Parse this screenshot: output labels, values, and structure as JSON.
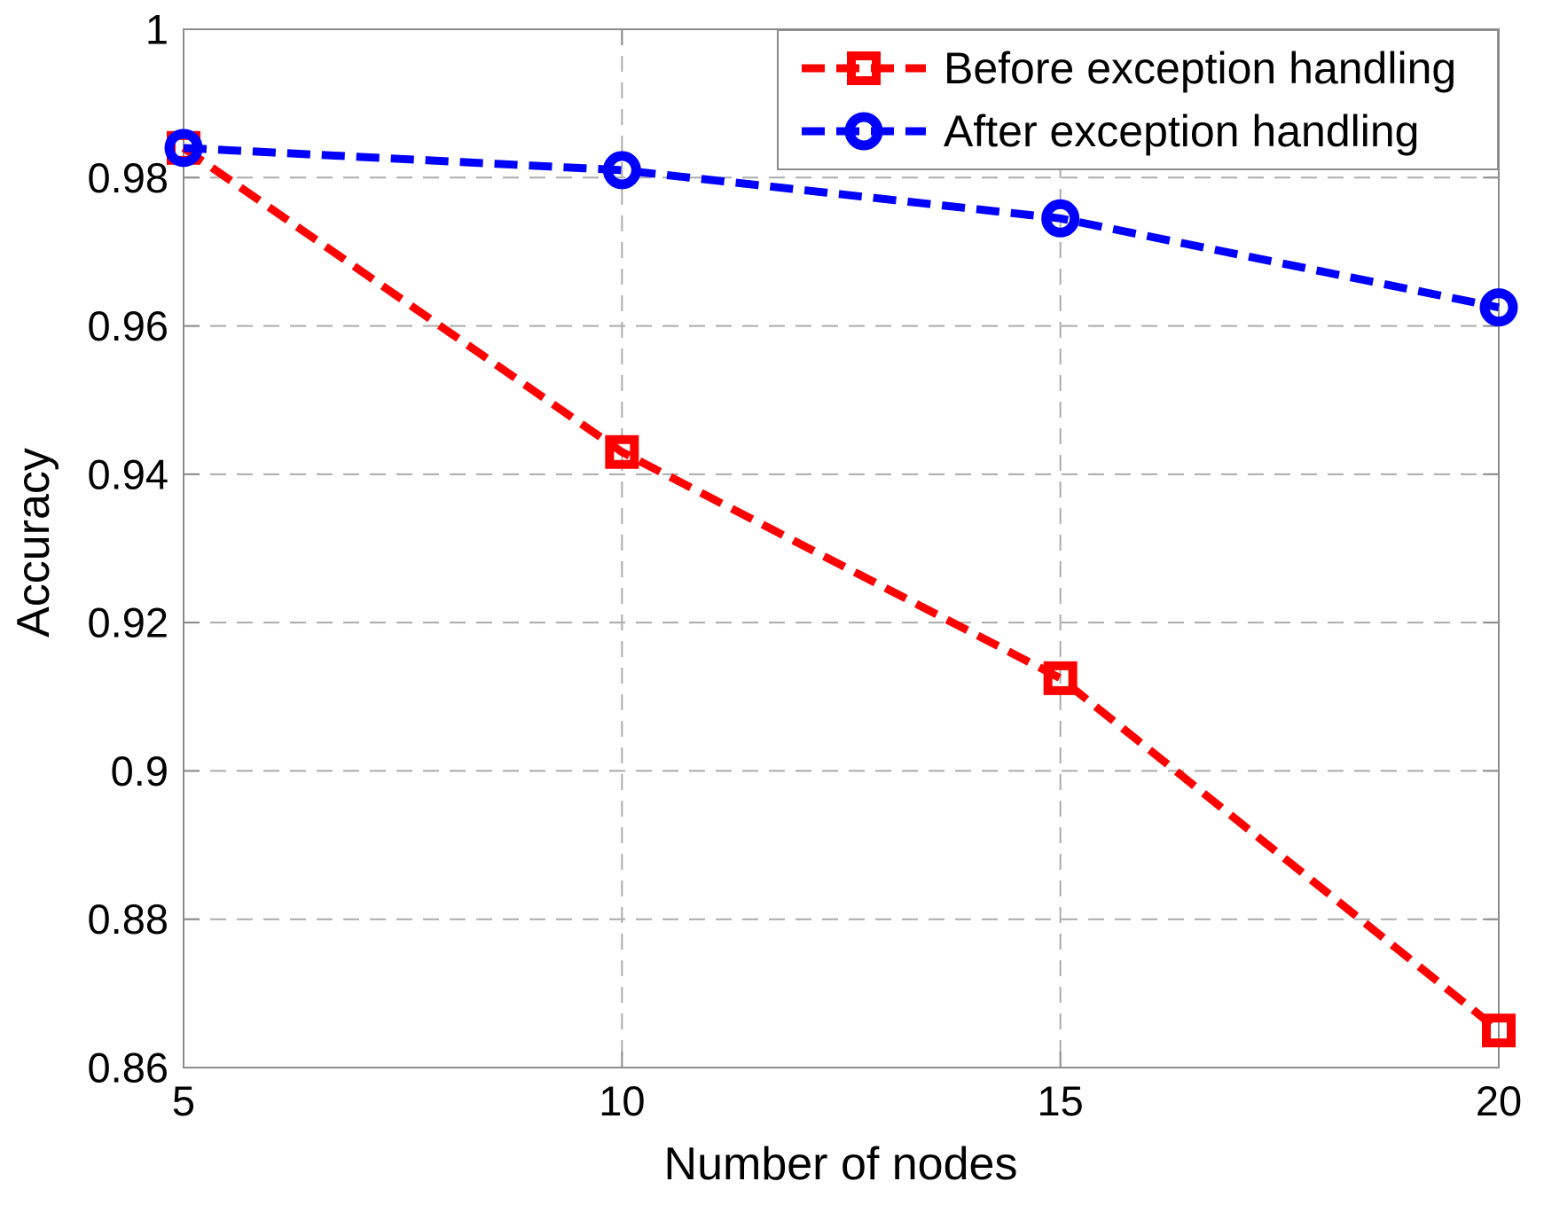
{
  "chart_data": {
    "type": "line",
    "title": "",
    "xlabel": "Number of nodes",
    "ylabel": "Accuracy",
    "x": [
      5,
      10,
      15,
      20
    ],
    "series": [
      {
        "name": "Before exception handling",
        "color": "#ff0000",
        "marker": "square",
        "line_style": "dashed",
        "values": [
          0.984,
          0.943,
          0.9125,
          0.865
        ]
      },
      {
        "name": "After exception handling",
        "color": "#0000ff",
        "marker": "circle",
        "line_style": "dashed",
        "values": [
          0.984,
          0.981,
          0.9745,
          0.9625
        ]
      }
    ],
    "xlim": [
      5,
      20
    ],
    "ylim": [
      0.86,
      1.0
    ],
    "xticks": [
      5,
      10,
      15,
      20
    ],
    "xtick_labels": [
      "5",
      "10",
      "15",
      "20"
    ],
    "yticks": [
      0.86,
      0.88,
      0.9,
      0.92,
      0.94,
      0.96,
      0.98,
      1.0
    ],
    "ytick_labels": [
      "0.86",
      "0.88",
      "0.9",
      "0.92",
      "0.94",
      "0.96",
      "0.98",
      "1"
    ],
    "grid": true,
    "legend_position": "top-right",
    "colors": {
      "grid": "#ababab",
      "axis": "#8c8c8c",
      "text": "#000000",
      "background": "#ffffff"
    }
  }
}
